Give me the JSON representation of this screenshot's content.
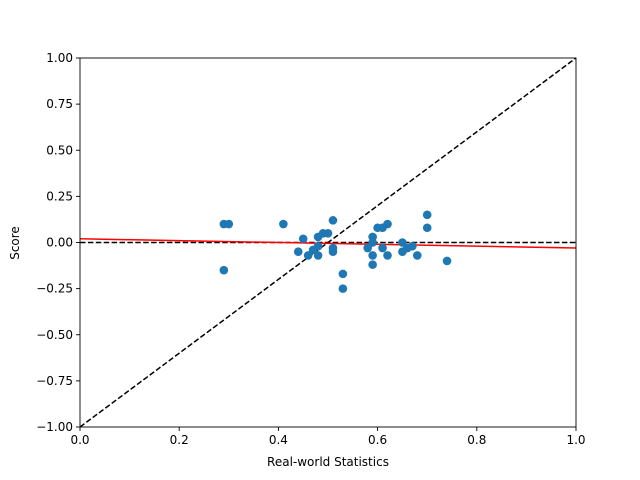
{
  "chart_data": {
    "type": "scatter",
    "title": "",
    "xlabel": "Real-world Statistics",
    "ylabel": "Score",
    "xlim": [
      0.0,
      1.0
    ],
    "ylim": [
      -1.0,
      1.0
    ],
    "xticks": [
      "0.0",
      "0.2",
      "0.4",
      "0.6",
      "0.8",
      "1.0"
    ],
    "yticks": [
      "-1.00",
      "-0.75",
      "-0.50",
      "-0.25",
      "0.00",
      "0.25",
      "0.50",
      "0.75",
      "1.00"
    ],
    "grid": false,
    "points": [
      {
        "x": 0.29,
        "y": 0.1
      },
      {
        "x": 0.3,
        "y": 0.1
      },
      {
        "x": 0.29,
        "y": -0.15
      },
      {
        "x": 0.41,
        "y": 0.1
      },
      {
        "x": 0.44,
        "y": -0.05
      },
      {
        "x": 0.45,
        "y": 0.02
      },
      {
        "x": 0.46,
        "y": -0.07
      },
      {
        "x": 0.47,
        "y": -0.04
      },
      {
        "x": 0.48,
        "y": 0.03
      },
      {
        "x": 0.48,
        "y": -0.02
      },
      {
        "x": 0.48,
        "y": -0.07
      },
      {
        "x": 0.49,
        "y": 0.05
      },
      {
        "x": 0.5,
        "y": 0.05
      },
      {
        "x": 0.51,
        "y": 0.12
      },
      {
        "x": 0.51,
        "y": -0.03
      },
      {
        "x": 0.51,
        "y": -0.05
      },
      {
        "x": 0.53,
        "y": -0.17
      },
      {
        "x": 0.53,
        "y": -0.25
      },
      {
        "x": 0.58,
        "y": -0.03
      },
      {
        "x": 0.59,
        "y": 0.03
      },
      {
        "x": 0.59,
        "y": 0.0
      },
      {
        "x": 0.59,
        "y": -0.07
      },
      {
        "x": 0.59,
        "y": -0.12
      },
      {
        "x": 0.6,
        "y": 0.08
      },
      {
        "x": 0.61,
        "y": 0.08
      },
      {
        "x": 0.61,
        "y": -0.03
      },
      {
        "x": 0.62,
        "y": 0.1
      },
      {
        "x": 0.62,
        "y": -0.07
      },
      {
        "x": 0.65,
        "y": 0.0
      },
      {
        "x": 0.65,
        "y": -0.05
      },
      {
        "x": 0.66,
        "y": -0.03
      },
      {
        "x": 0.67,
        "y": -0.02
      },
      {
        "x": 0.68,
        "y": -0.07
      },
      {
        "x": 0.7,
        "y": 0.15
      },
      {
        "x": 0.7,
        "y": 0.08
      },
      {
        "x": 0.74,
        "y": -0.1
      }
    ],
    "lines": [
      {
        "x": [
          0.0,
          1.0
        ],
        "y": [
          -1.0,
          1.0
        ],
        "color": "#000000",
        "style": "dashed"
      },
      {
        "x": [
          0.0,
          1.0
        ],
        "y": [
          0.0,
          0.0
        ],
        "color": "#000000",
        "style": "dashed"
      },
      {
        "x": [
          0.0,
          1.0
        ],
        "y": [
          0.02,
          -0.03
        ],
        "color": "#ff0000",
        "style": "solid"
      }
    ],
    "marker_color": "#1f77b4"
  }
}
